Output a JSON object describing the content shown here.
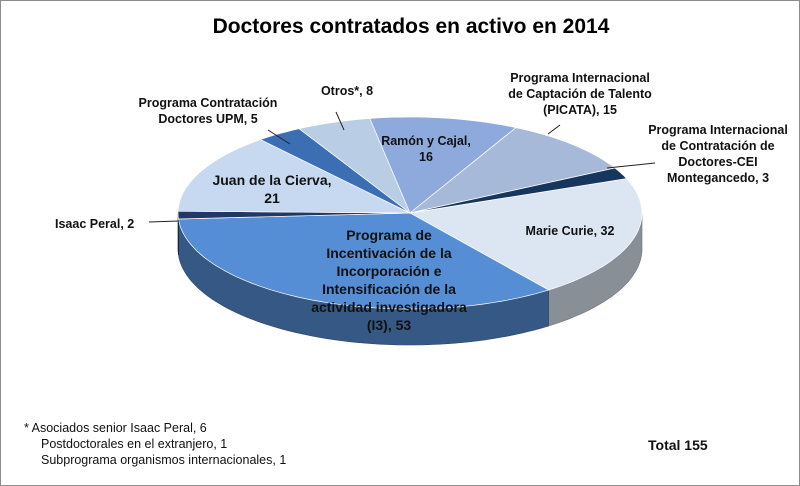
{
  "chart_data": {
    "type": "pie",
    "title": "Doctores contratados en activo en 2014",
    "slices": [
      {
        "key": "curie",
        "label": "Marie Curie",
        "value": 32,
        "color": "#dce6f2"
      },
      {
        "key": "i3",
        "label": "Programa de Incentivación de la Incorporación e Intensificación de la actividad investigadora (I3)",
        "value": 53,
        "color": "#558ed5"
      },
      {
        "key": "isaac",
        "label": "Isaac Peral",
        "value": 2,
        "color": "#1f3864"
      },
      {
        "key": "cierva",
        "label": "Juan de la Cierva",
        "value": 21,
        "color": "#c6d9f1"
      },
      {
        "key": "upm",
        "label": "Programa Contratación Doctores UPM",
        "value": 5,
        "color": "#3b6eb3"
      },
      {
        "key": "otros",
        "label": "Otros*",
        "value": 8,
        "color": "#b9cde5"
      },
      {
        "key": "ramon",
        "label": "Ramón y Cajal",
        "value": 16,
        "color": "#8ea9db"
      },
      {
        "key": "picata",
        "label": "Programa Internacional de Captación de Talento (PICATA)",
        "value": 15,
        "color": "#a6b9d8"
      },
      {
        "key": "cei",
        "label": "Programa Internacional de Contratación de Doctores-CEI Montegancedo",
        "value": 3,
        "color": "#17365d"
      }
    ],
    "labels": {
      "curie": [
        "Marie Curie, 32"
      ],
      "i3": [
        "Programa de",
        "Incentivación de la",
        "Incorporación e",
        "Intensificación de la",
        "actividad investigadora",
        "(I3), 53"
      ],
      "isaac": [
        "Isaac Peral, 2"
      ],
      "cierva": [
        "Juan de la Cierva,",
        "21"
      ],
      "upm": [
        "Programa Contratación",
        "Doctores UPM, 5"
      ],
      "otros": [
        "Otros*, 8"
      ],
      "ramon": [
        "Ramón y Cajal,",
        "16"
      ],
      "picata": [
        "Programa Internacional",
        "de Captación de Talento",
        "(PICATA), 15"
      ],
      "cei": [
        "Programa Internacional",
        "de Contratación de",
        "Doctores-CEI",
        "Montegancedo, 3"
      ]
    },
    "footnote": [
      "* Asociados senior Isaac Peral, 6",
      "Postdoctorales en el extranjero, 1",
      "Subprograma organismos internacionales, 1"
    ],
    "total_label": "Total 155"
  }
}
